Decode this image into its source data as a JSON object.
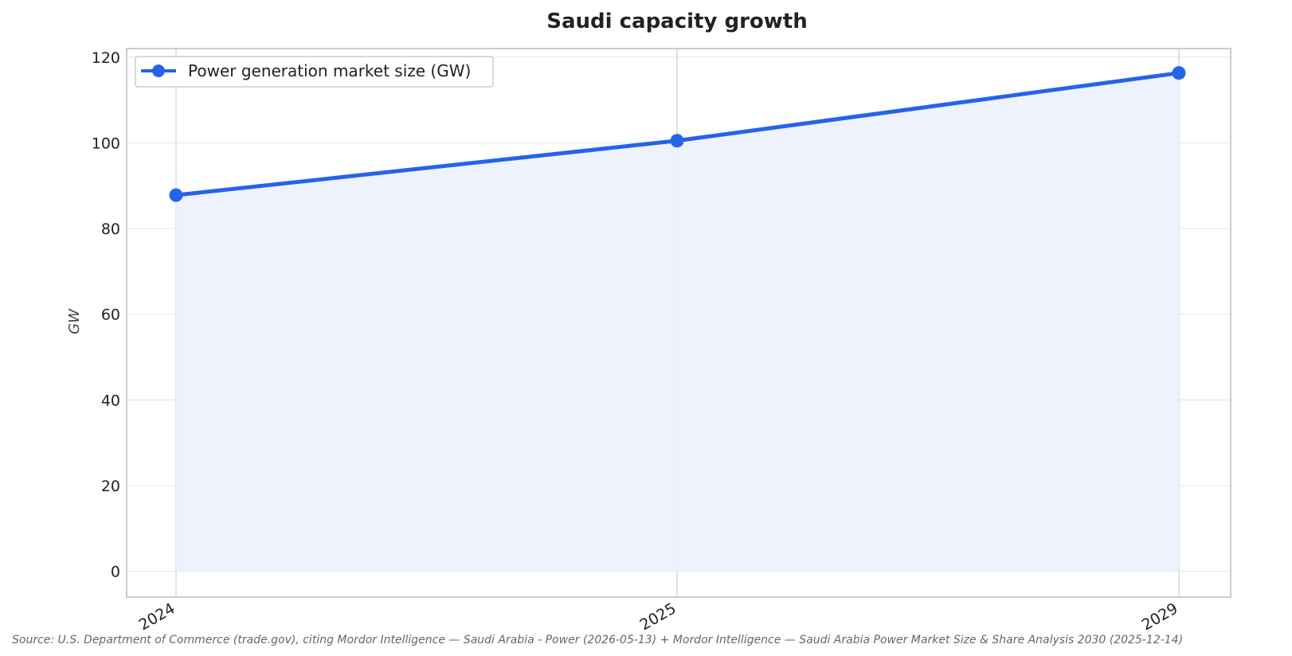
{
  "chart_data": {
    "type": "area",
    "title": "Saudi capacity growth",
    "xlabel": "",
    "ylabel": "GW",
    "categories": [
      "2024",
      "2025",
      "2029"
    ],
    "series": [
      {
        "name": "Power generation market size (GW)",
        "values": [
          87.8,
          100.5,
          116.3
        ]
      }
    ],
    "yticks": [
      0,
      20,
      40,
      60,
      80,
      100,
      120
    ],
    "ylim": [
      -6,
      122
    ],
    "grid": true,
    "legend": "top-left",
    "colors": {
      "line": "#2563eb",
      "fill": "#ecf1fd",
      "grid": "#e4e7ee",
      "frame": "#cccccc"
    }
  },
  "source": "Source: U.S. Department of Commerce (trade.gov), citing Mordor Intelligence — Saudi Arabia - Power (2026-05-13) + Mordor Intelligence — Saudi Arabia Power Market Size & Share Analysis 2030 (2025-12-14)"
}
